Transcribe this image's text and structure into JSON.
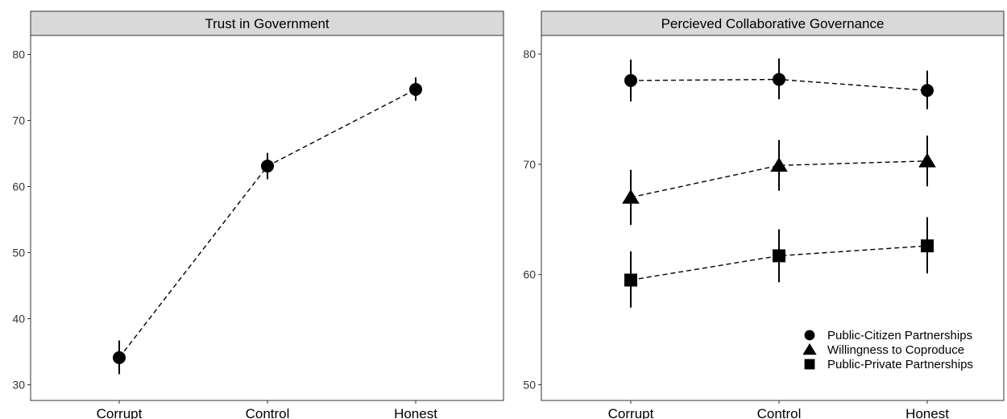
{
  "chart_data": [
    {
      "type": "line",
      "title": "Trust in Government",
      "categories": [
        "Corrupt",
        "Control",
        "Honest"
      ],
      "ylim": [
        28,
        84
      ],
      "yticks": [
        30,
        40,
        50,
        60,
        70,
        80
      ],
      "grid": false,
      "series": [
        {
          "shape": "circle",
          "values": [
            34.1,
            63.1,
            74.7
          ],
          "ci_low": [
            31.6,
            61.1,
            73.0
          ],
          "ci_high": [
            36.7,
            65.1,
            76.5
          ]
        }
      ]
    },
    {
      "type": "line",
      "title": "Percieved Collaborative Governance",
      "categories": [
        "Corrupt",
        "Control",
        "Honest"
      ],
      "ylim": [
        49,
        81
      ],
      "yticks": [
        50,
        60,
        70,
        80
      ],
      "grid": false,
      "legend_position": "bottom-right",
      "series": [
        {
          "name": "Public-Citizen Partnerships",
          "shape": "circle",
          "values": [
            77.6,
            77.7,
            76.7
          ],
          "ci_low": [
            75.7,
            75.9,
            75.0
          ],
          "ci_high": [
            79.5,
            79.6,
            78.5
          ]
        },
        {
          "name": "Willingness to Coproduce",
          "shape": "triangle",
          "values": [
            67.0,
            69.9,
            70.3
          ],
          "ci_low": [
            64.5,
            67.6,
            68.0
          ],
          "ci_high": [
            69.5,
            72.2,
            72.6
          ]
        },
        {
          "name": "Public-Private Partnerships",
          "shape": "square",
          "values": [
            59.5,
            61.7,
            62.6
          ],
          "ci_low": [
            57.0,
            59.3,
            60.1
          ],
          "ci_high": [
            62.1,
            64.1,
            65.2
          ]
        }
      ]
    }
  ]
}
